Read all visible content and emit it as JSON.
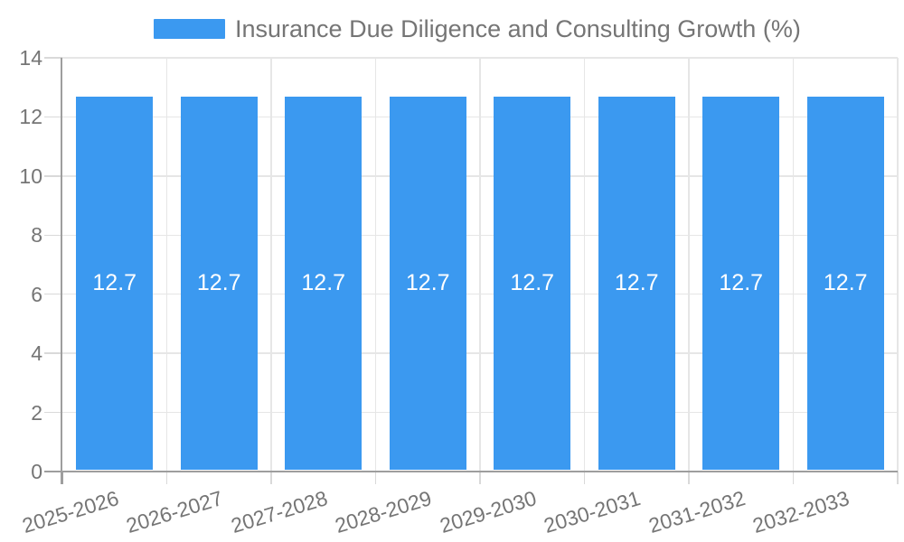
{
  "chart_data": {
    "type": "bar",
    "series_name": "Insurance Due Diligence and Consulting Growth (%)",
    "legend_position": "top",
    "categories": [
      "2025-2026",
      "2026-2027",
      "2027-2028",
      "2028-2029",
      "2029-2030",
      "2030-2031",
      "2031-2032",
      "2032-2033"
    ],
    "values": [
      12.7,
      12.7,
      12.7,
      12.7,
      12.7,
      12.7,
      12.7,
      12.7
    ],
    "value_label_decimals": 1,
    "xlabel": "",
    "ylabel": "",
    "ylim": [
      0,
      14
    ],
    "yticks": [
      0,
      2,
      4,
      6,
      8,
      10,
      12,
      14
    ],
    "grid": "on",
    "colors": {
      "bar": "#3b99f0",
      "grid_line": "#e6e6e6",
      "tick_line": "#d9d9d9",
      "axis_line": "#9e9e9e",
      "label_text": "#757575",
      "value_text": "#ffffff",
      "background": "#ffffff"
    }
  }
}
